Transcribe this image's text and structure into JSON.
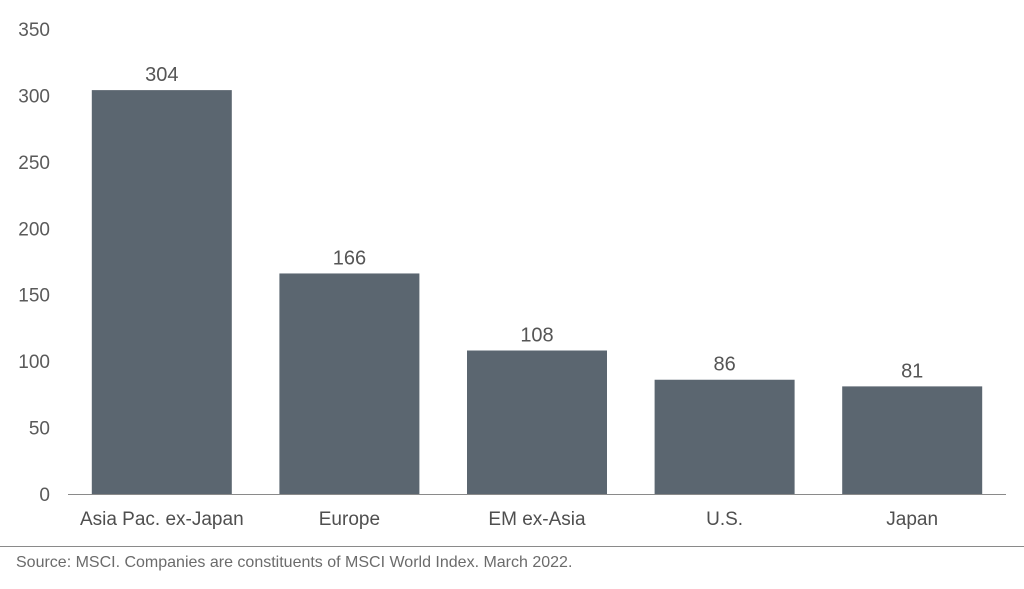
{
  "chart_data": {
    "type": "bar",
    "categories": [
      "Asia Pac. ex-Japan",
      "Europe",
      "EM ex-Asia",
      "U.S.",
      "Japan"
    ],
    "values": [
      304,
      166,
      108,
      86,
      81
    ],
    "data_labels": [
      "304",
      "166",
      "108",
      "86",
      "81"
    ],
    "ylim": [
      0,
      350
    ],
    "yticks": [
      0,
      50,
      100,
      150,
      200,
      250,
      300,
      350
    ],
    "title": "",
    "xlabel": "",
    "ylabel": "",
    "grid": false,
    "bar_color": "#5b6670",
    "axis_color": "#8a8a8a"
  },
  "footer": {
    "source": "Source: MSCI. Companies are constituents of MSCI World Index. March 2022."
  }
}
